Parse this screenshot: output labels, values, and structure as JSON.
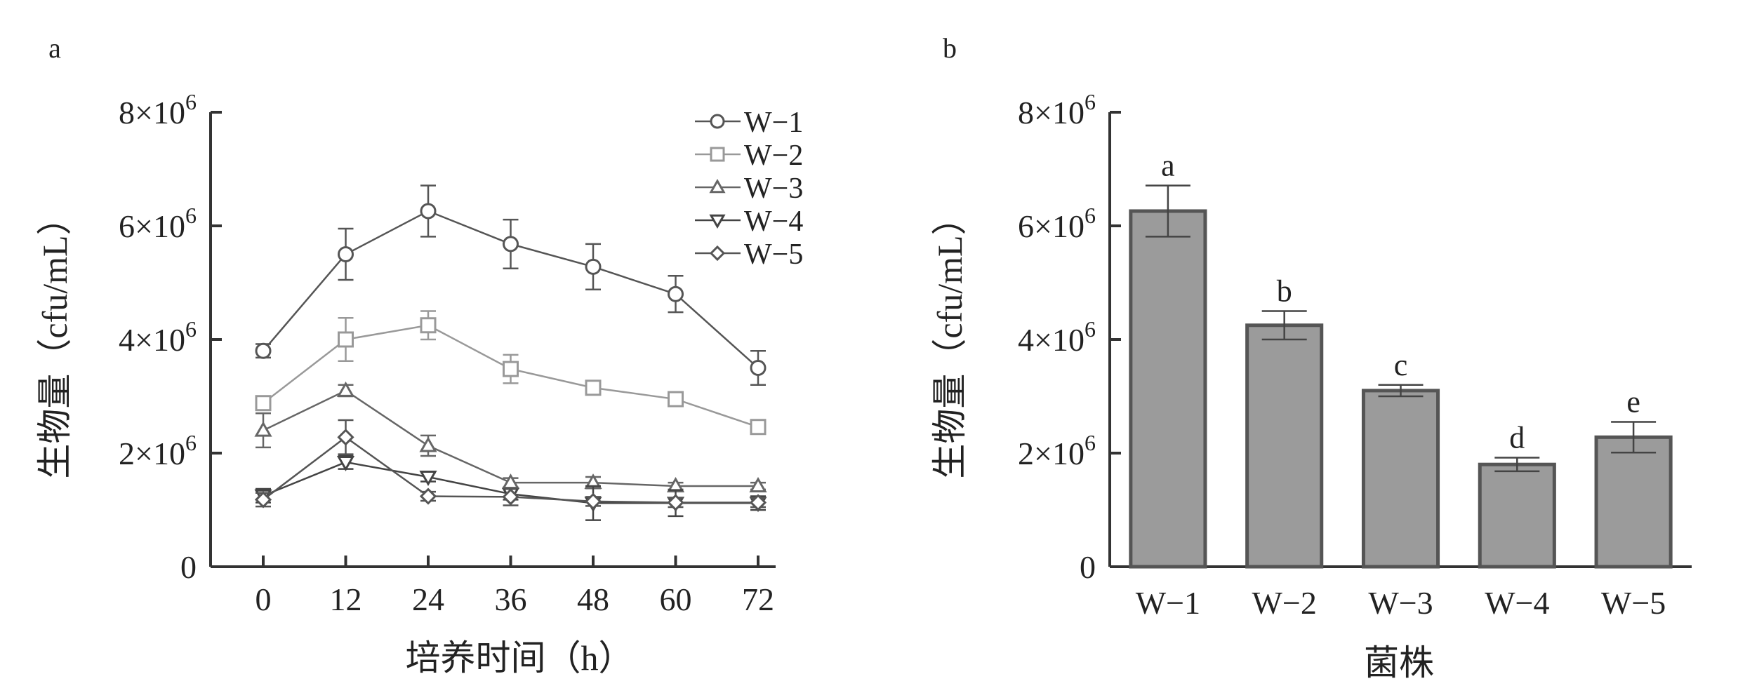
{
  "panels": [
    {
      "letter": "a"
    },
    {
      "letter": "b"
    }
  ],
  "chart_data": [
    {
      "type": "line",
      "ylabel": "生物量（cfu/mL）",
      "xlabel": "培养时间（h）",
      "x": [
        0,
        12,
        24,
        36,
        48,
        60,
        72
      ],
      "xticks": [
        "0",
        "12",
        "24",
        "36",
        "48",
        "60",
        "72"
      ],
      "ylim": [
        0,
        8000000
      ],
      "yticks": [
        0,
        2000000,
        4000000,
        6000000,
        8000000
      ],
      "ytick_labels": [
        {
          "base": "0",
          "exp": ""
        },
        {
          "base": "2×10",
          "exp": "6"
        },
        {
          "base": "4×10",
          "exp": "6"
        },
        {
          "base": "6×10",
          "exp": "6"
        },
        {
          "base": "8×10",
          "exp": "6"
        }
      ],
      "legend_position": "top-right",
      "series": [
        {
          "name": "W−1",
          "marker": "circle",
          "color": "#555555",
          "values": [
            3800000,
            5500000,
            6260000,
            5680000,
            5280000,
            4800000,
            3500000
          ],
          "errors": [
            120000,
            450000,
            450000,
            430000,
            400000,
            320000,
            300000
          ]
        },
        {
          "name": "W−2",
          "marker": "square",
          "color": "#999999",
          "values": [
            2880000,
            4000000,
            4250000,
            3480000,
            3150000,
            2950000,
            2460000
          ],
          "errors": [
            80000,
            380000,
            250000,
            250000,
            100000,
            70000,
            70000
          ]
        },
        {
          "name": "W−3",
          "marker": "triangle-up",
          "color": "#666666",
          "values": [
            2400000,
            3100000,
            2130000,
            1480000,
            1480000,
            1420000,
            1420000
          ],
          "errors": [
            300000,
            100000,
            180000,
            80000,
            100000,
            60000,
            60000
          ]
        },
        {
          "name": "W−4",
          "marker": "triangle-down",
          "color": "#444444",
          "values": [
            1250000,
            1840000,
            1580000,
            1280000,
            1120000,
            1120000,
            1120000
          ],
          "errors": [
            120000,
            120000,
            80000,
            100000,
            300000,
            230000,
            120000
          ]
        },
        {
          "name": "W−5",
          "marker": "diamond",
          "color": "#555555",
          "values": [
            1180000,
            2280000,
            1240000,
            1230000,
            1150000,
            1130000,
            1130000
          ],
          "errors": [
            120000,
            300000,
            80000,
            150000,
            80000,
            80000,
            80000
          ]
        }
      ]
    },
    {
      "type": "bar",
      "ylabel": "生物量（cfu/mL）",
      "xlabel": "菌株",
      "categories": [
        "W−1",
        "W−2",
        "W−3",
        "W−4",
        "W−5"
      ],
      "values": [
        6260000,
        4250000,
        3100000,
        1800000,
        2280000
      ],
      "errors": [
        450000,
        250000,
        100000,
        120000,
        270000
      ],
      "significance": [
        "a",
        "b",
        "c",
        "d",
        "e"
      ],
      "bar_color": "#9b9b9b",
      "bar_edge_color": "#555555",
      "ylim": [
        0,
        8000000
      ],
      "yticks": [
        0,
        2000000,
        4000000,
        6000000,
        8000000
      ],
      "ytick_labels": [
        {
          "base": "0",
          "exp": ""
        },
        {
          "base": "2×10",
          "exp": "6"
        },
        {
          "base": "4×10",
          "exp": "6"
        },
        {
          "base": "6×10",
          "exp": "6"
        },
        {
          "base": "8×10",
          "exp": "6"
        }
      ]
    }
  ]
}
